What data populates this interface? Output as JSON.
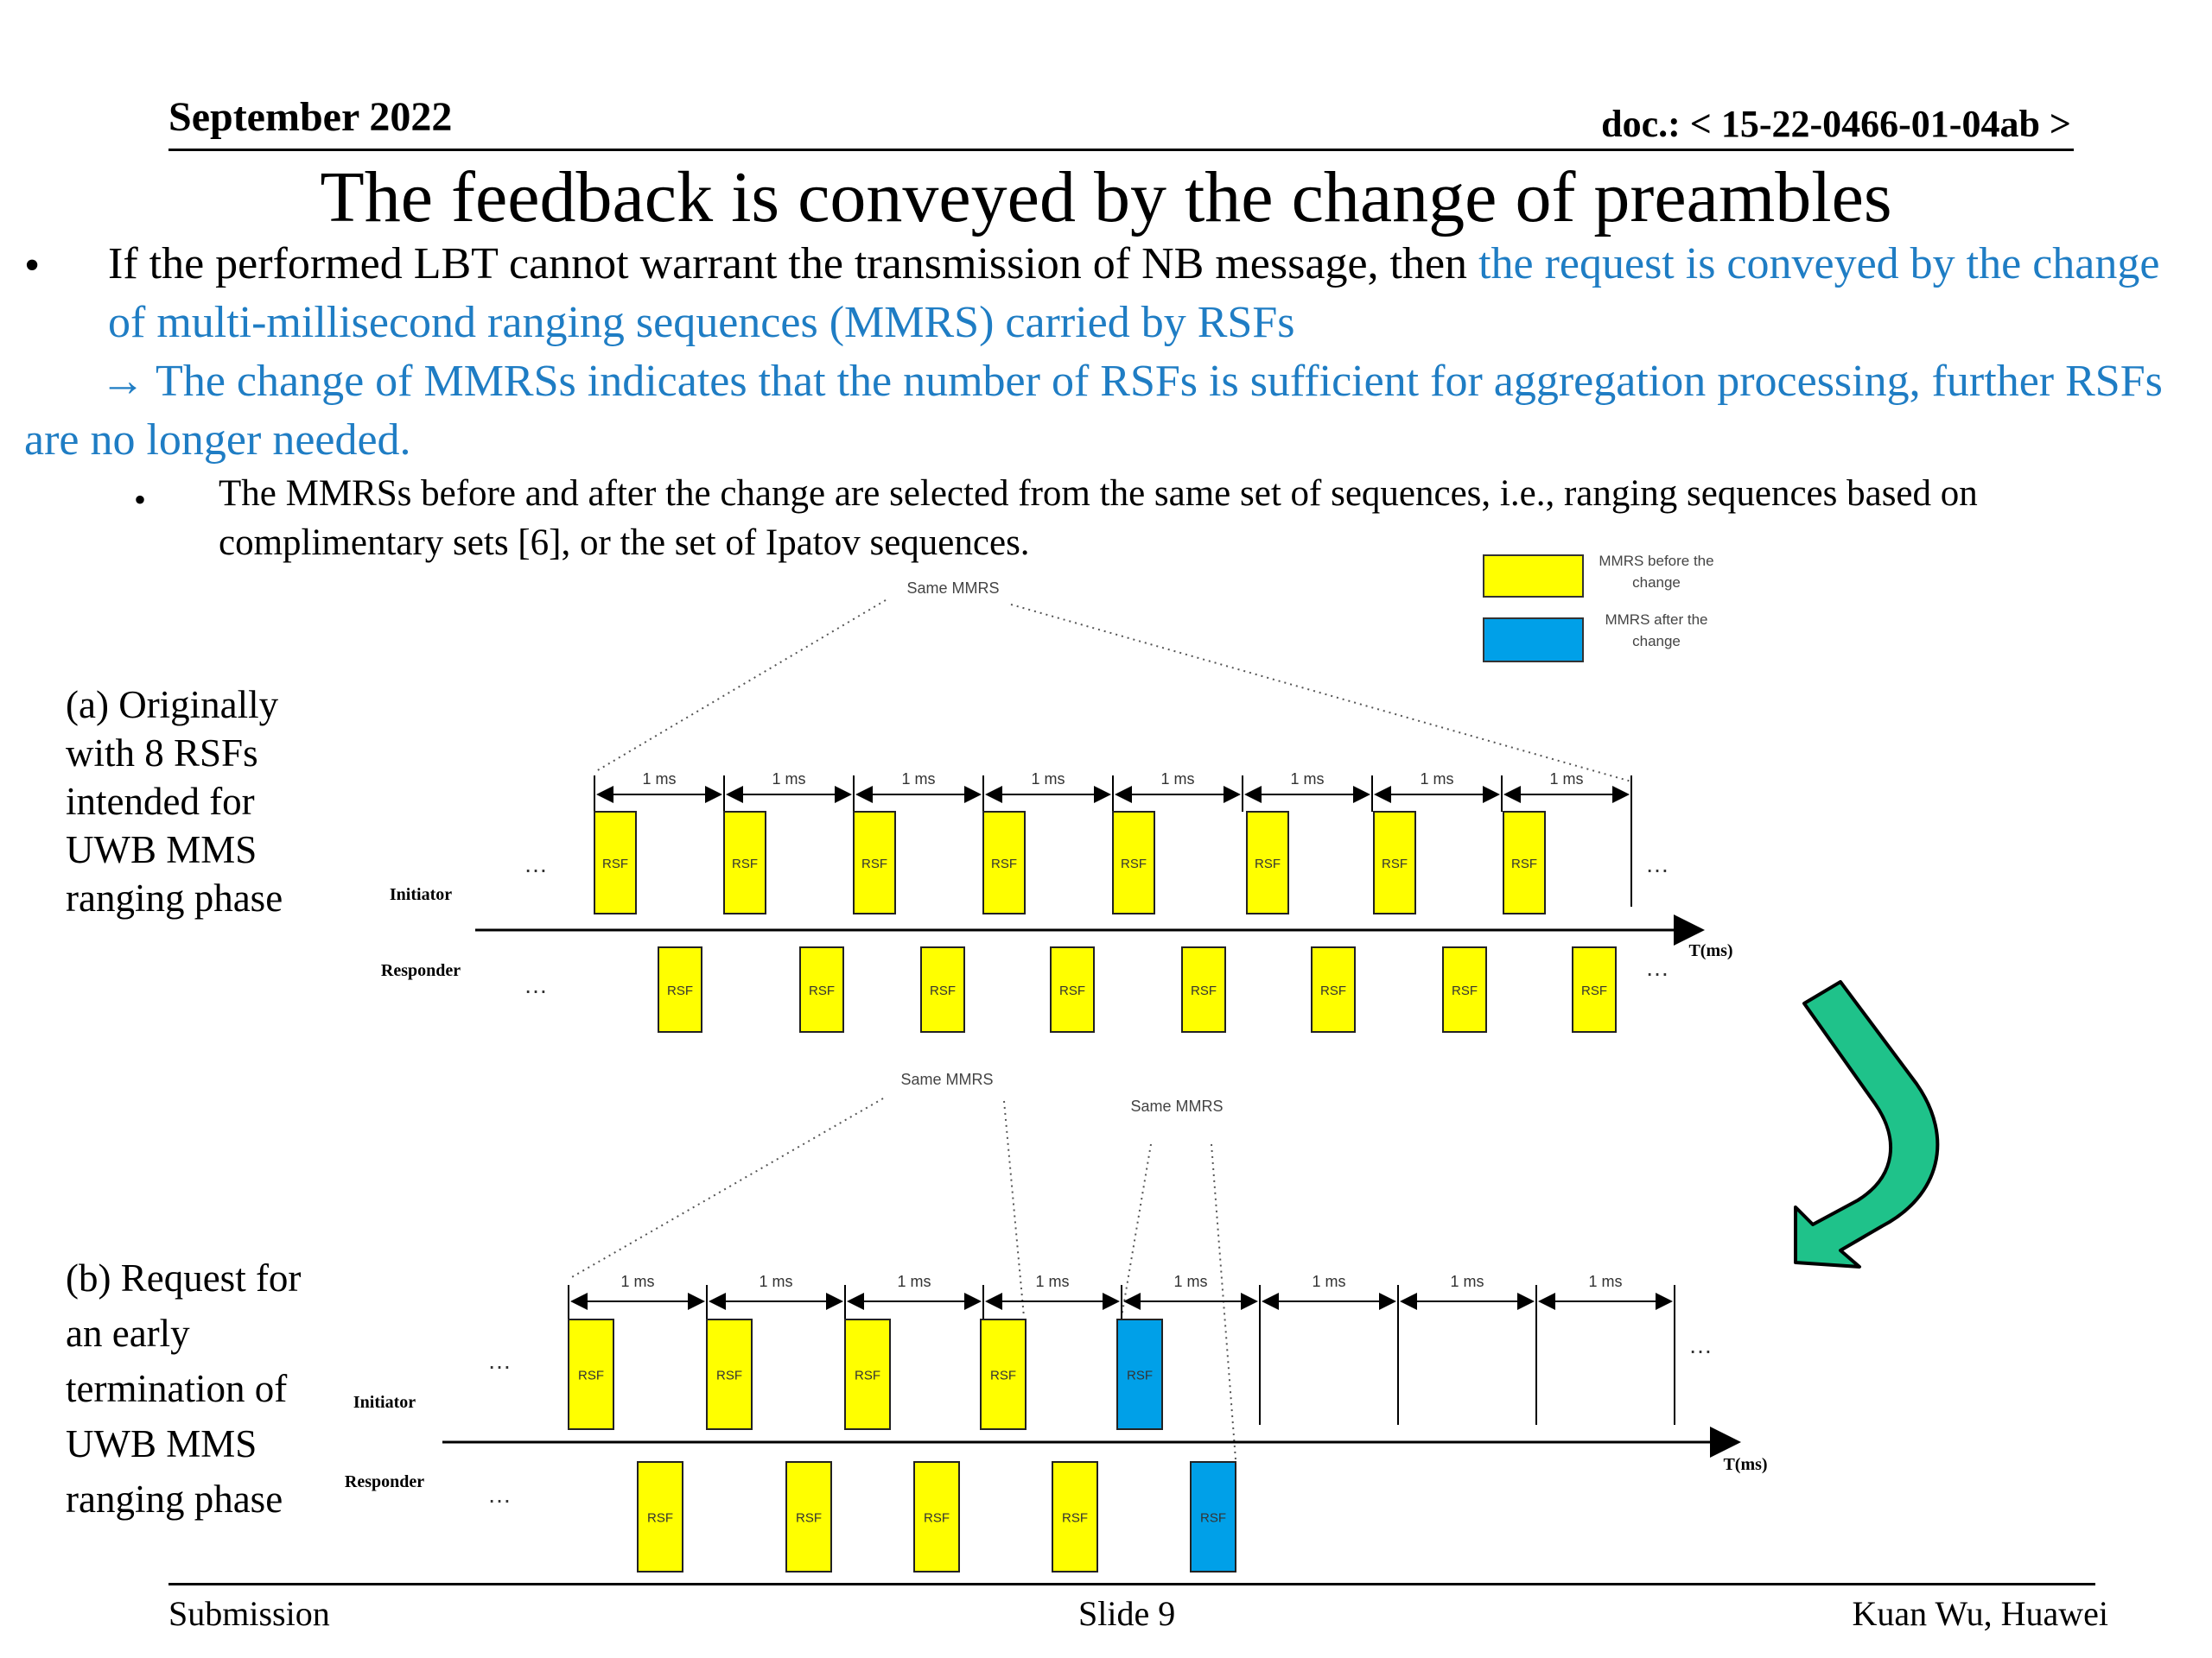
{
  "header": {
    "date": "September 2022",
    "doc": "doc.: < 15-22-0466-01-04ab >"
  },
  "title": "The feedback is conveyed by the change of preambles",
  "bullet1": {
    "black": "If the performed LBT cannot warrant the transmission of NB message, then ",
    "blue": "the request is conveyed by the change of multi-millisecond ranging sequences (MMRS) carried by RSFs"
  },
  "bullet1_cont": "→ The change of MMRSs indicates that the number of RSFs is sufficient for aggregation processing, further RSFs are no longer needed.",
  "sub_bullet": "The MMRSs before and after the change are selected from the same set of sequences, i.e., ranging sequences based on complimentary sets [6], or the set of  Ipatov sequences.",
  "legend": {
    "before": "MMRS before the change",
    "after": "MMRS after the change",
    "before_color": "#ffff00",
    "after_color": "#00a0e8"
  },
  "diagram": {
    "same_mmrs": "Same MMRS",
    "interval": "1 ms",
    "rsf": "RSF",
    "initiator": "Initiator",
    "responder": "Responder",
    "time_axis": "T(ms)",
    "ellipsis": "…",
    "arrow_color": "#1fc28a"
  },
  "caption_a": "(a) Originally with 8 RSFs intended for UWB MMS ranging phase",
  "caption_b": " (b) Request for an early termination of UWB MMS ranging phase",
  "footer": {
    "left": "Submission",
    "center": "Slide 9",
    "right": "Kuan Wu, Huawei"
  }
}
